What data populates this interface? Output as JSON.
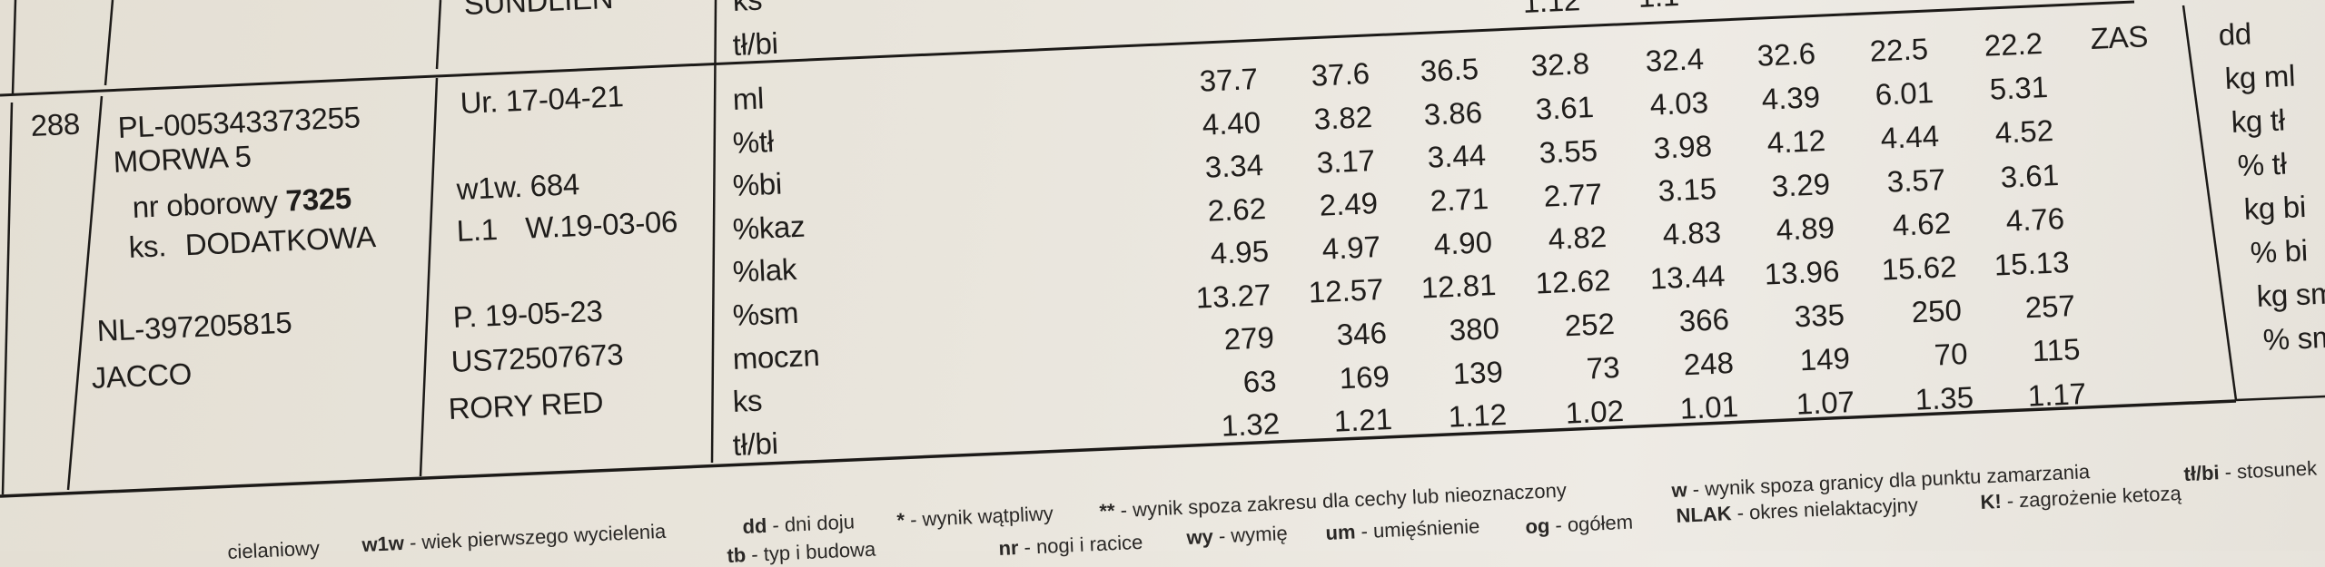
{
  "previous_record": {
    "sire_name": "SUNDLIEN",
    "labels": [
      "ks",
      "tł/bi"
    ],
    "values_partial": [
      "1.12",
      "1.1"
    ]
  },
  "record": {
    "number": "288",
    "cow_id": "PL-005343373255",
    "cow_name": "MORWA 5",
    "herd_number_label": "nr oborowy",
    "herd_number": "7325",
    "book_label": "ks.",
    "book": "DODATKOWA",
    "sire_id": "NL-397205815",
    "sire_name": "JACCO",
    "birth": "Ur. 17-04-21",
    "first_calving_age": "w1w. 684",
    "lactation": "L.1",
    "calving": "W.19-03-06",
    "insemination": "P. 19-05-23",
    "service_sire_id": "US72507673",
    "service_sire_name": "RORY RED",
    "trait_labels": [
      "ml",
      "%tł",
      "%bi",
      "%kaz",
      "%lak",
      "%sm",
      "moczn",
      "ks",
      "tł/bi"
    ],
    "values": [
      [
        "37.7",
        "37.6",
        "36.5",
        "32.8",
        "32.4",
        "32.6",
        "22.5",
        "22.2"
      ],
      [
        "4.40",
        "3.82",
        "3.86",
        "3.61",
        "4.03",
        "4.39",
        "6.01",
        "5.31"
      ],
      [
        "3.34",
        "3.17",
        "3.44",
        "3.55",
        "3.98",
        "4.12",
        "4.44",
        "4.52"
      ],
      [
        "2.62",
        "2.49",
        "2.71",
        "2.77",
        "3.15",
        "3.29",
        "3.57",
        "3.61"
      ],
      [
        "4.95",
        "4.97",
        "4.90",
        "4.82",
        "4.83",
        "4.89",
        "4.62",
        "4.76"
      ],
      [
        "13.27",
        "12.57",
        "12.81",
        "12.62",
        "13.44",
        "13.96",
        "15.62",
        "15.13"
      ],
      [
        "279",
        "346",
        "380",
        "252",
        "366",
        "335",
        "250",
        "257"
      ],
      [
        "63",
        "169",
        "139",
        "73",
        "248",
        "149",
        "70",
        "115"
      ],
      [
        "1.32",
        "1.21",
        "1.12",
        "1.02",
        "1.01",
        "1.07",
        "1.35",
        "1.17"
      ]
    ],
    "status": "ZAS",
    "summary_units": [
      "dd",
      "kg ml",
      "kg tł",
      "% tł",
      "kg bi",
      "% bi",
      "kg sm",
      "% sm"
    ]
  },
  "legend": {
    "line1": [
      {
        "abbr": "",
        "desc": "cielaniowy"
      },
      {
        "abbr": "w1w",
        "desc": " - wiek pierwszego wycielenia"
      },
      {
        "abbr": "dd",
        "desc": " - dni doju"
      },
      {
        "abbr": "*",
        "desc": " - wynik wątpliwy"
      },
      {
        "abbr": "**",
        "desc": " - wynik spoza zakresu dla cechy lub nieoznaczony"
      },
      {
        "abbr": "w",
        "desc": " - wynik spoza granicy dla punktu zamarzania"
      },
      {
        "abbr": "tł/bi",
        "desc": " - stosunek"
      }
    ],
    "line2": [
      {
        "abbr": "tb",
        "desc": " - typ i budowa"
      },
      {
        "abbr": "nr",
        "desc": " - nogi i racice"
      },
      {
        "abbr": "wy",
        "desc": " - wymię"
      },
      {
        "abbr": "um",
        "desc": " - umięśnienie"
      },
      {
        "abbr": "og",
        "desc": " - ogółem"
      },
      {
        "abbr": "NLAK",
        "desc": " - okres nielaktacyjny"
      },
      {
        "abbr": "K!",
        "desc": " - zagrożenie ketozą"
      }
    ]
  }
}
